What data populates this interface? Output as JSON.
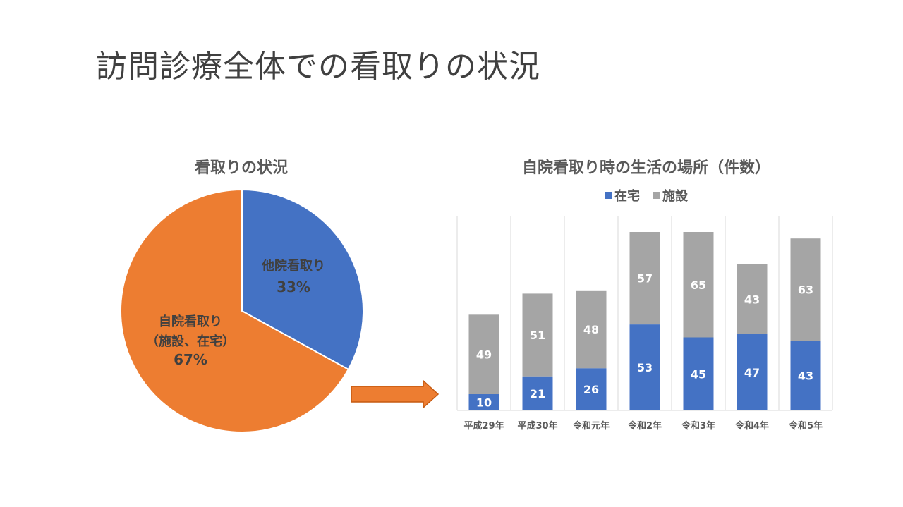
{
  "slide_title": "訪問診療全体での看取りの状況",
  "colors": {
    "blue": "#4472C4",
    "orange": "#ED7D31",
    "gray": "#A5A5A5"
  },
  "chart_data": [
    {
      "type": "pie",
      "title": "看取りの状況",
      "slices": [
        {
          "label": "他院看取り",
          "value": 33,
          "value_label": "33%",
          "color": "#4472C4"
        },
        {
          "label": "自院看取り",
          "sublabel": "（施設、在宅）",
          "value": 67,
          "value_label": "67%",
          "color": "#ED7D31"
        }
      ]
    },
    {
      "type": "bar",
      "stacked": true,
      "title": "自院看取り時の生活の場所（件数）",
      "legend_position": "top",
      "categories": [
        "平成29年",
        "平成30年",
        "令和元年",
        "令和2年",
        "令和3年",
        "令和4年",
        "令和5年"
      ],
      "series": [
        {
          "name": "在宅",
          "color": "#4472C4",
          "values": [
            10,
            21,
            26,
            53,
            45,
            47,
            43
          ]
        },
        {
          "name": "施設",
          "color": "#A5A5A5",
          "values": [
            49,
            51,
            48,
            57,
            65,
            43,
            63
          ]
        }
      ],
      "ylim": [
        0,
        120
      ],
      "grid": "vertical-separators"
    }
  ]
}
